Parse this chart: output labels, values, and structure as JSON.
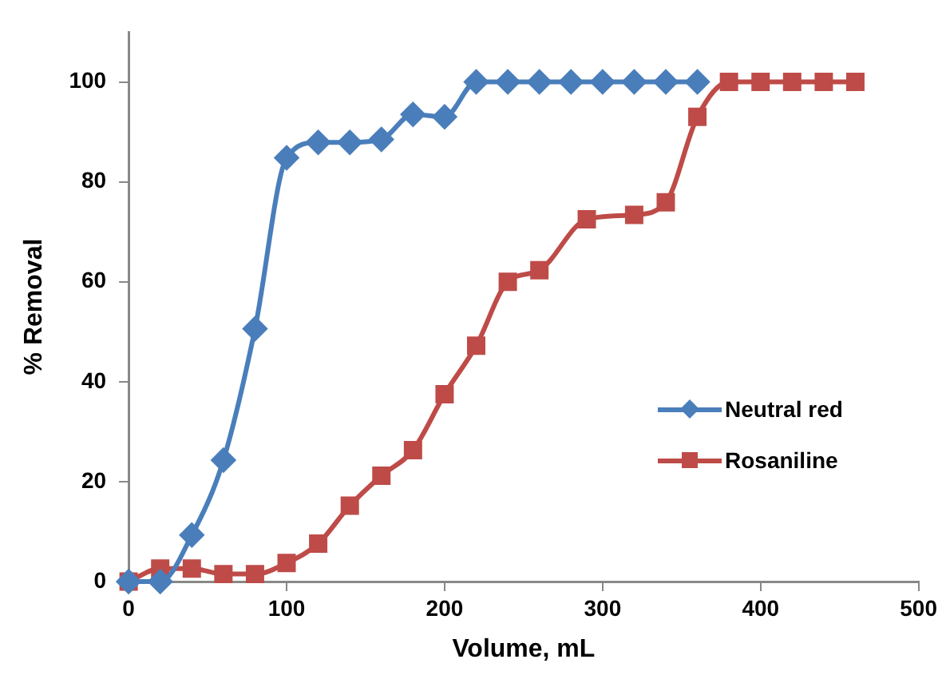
{
  "chart_data": {
    "type": "line",
    "xlabel": "Volume, mL",
    "ylabel": "% Removal",
    "xlim": [
      0,
      500
    ],
    "xticks": [
      0,
      100,
      200,
      300,
      400,
      500
    ],
    "ylim": [
      0,
      110
    ],
    "yticks": [
      0,
      20,
      40,
      60,
      80,
      100
    ],
    "grid": false,
    "legend": "right",
    "series": [
      {
        "name": "Neutral red",
        "color": "#4a7ebb",
        "marker": "diamond",
        "x": [
          0,
          20,
          40,
          60,
          80,
          100,
          120,
          140,
          160,
          180,
          200,
          220,
          240,
          260,
          280,
          300,
          320,
          340,
          360
        ],
        "values": [
          0,
          0,
          9.3,
          24.3,
          50.6,
          84.8,
          87.9,
          87.9,
          88.5,
          93.5,
          93,
          100,
          100,
          100,
          100,
          100,
          100,
          100,
          100
        ]
      },
      {
        "name": "Rosaniline",
        "color": "#be4b48",
        "marker": "square",
        "x": [
          0,
          20,
          40,
          60,
          80,
          100,
          120,
          140,
          160,
          180,
          200,
          220,
          240,
          260,
          290,
          320,
          340,
          360,
          380,
          400,
          420,
          440,
          460
        ],
        "values": [
          0,
          2.6,
          2.6,
          1.5,
          1.5,
          3.7,
          7.6,
          15.2,
          21.2,
          26.3,
          37.5,
          47.2,
          60,
          62.3,
          72.5,
          73.4,
          75.9,
          93,
          100,
          100,
          100,
          100,
          100
        ]
      }
    ]
  }
}
